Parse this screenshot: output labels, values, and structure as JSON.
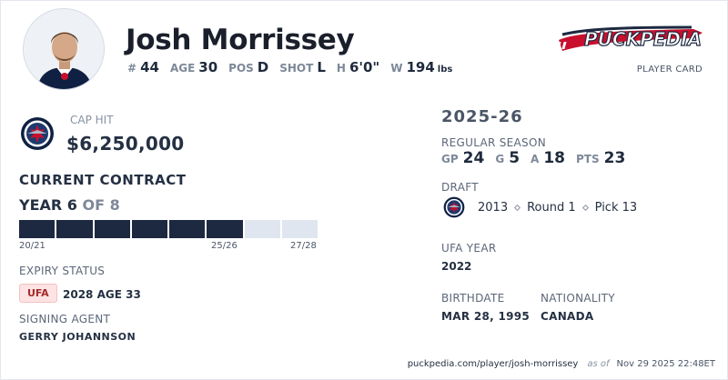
{
  "player": {
    "name": "Josh Morrissey",
    "number_label": "#",
    "number": "44",
    "age_label": "AGE",
    "age": "30",
    "pos_label": "POS",
    "pos": "D",
    "shot_label": "SHOT",
    "shot": "L",
    "height_label": "H",
    "height": "6'0\"",
    "weight_label": "W",
    "weight": "194",
    "weight_unit": "lbs"
  },
  "brand": {
    "logo_text": "PUCKPEDIA",
    "card_label": "PLAYER CARD",
    "colors": {
      "navy": "#1d2940",
      "red": "#c8102e",
      "light_bar": "#e0e6ef"
    }
  },
  "contract": {
    "cap_hit_label": "CAP HIT",
    "cap_hit": "$6,250,000",
    "title": "CURRENT CONTRACT",
    "year_prefix": "YEAR 6",
    "year_suffix": "OF 8",
    "years_total": 8,
    "years_elapsed": 6,
    "ticks": [
      "20/21",
      "25/26",
      "27/28"
    ],
    "expiry_label": "EXPIRY STATUS",
    "expiry_badge": "UFA",
    "expiry_text": "2028 AGE 33",
    "agent_label": "SIGNING AGENT",
    "agent": "GERRY JOHANNSON"
  },
  "season": {
    "title": "2025-26",
    "regular_label": "REGULAR SEASON",
    "gp_label": "GP",
    "gp": "24",
    "g_label": "G",
    "g": "5",
    "a_label": "A",
    "a": "18",
    "pts_label": "PTS",
    "pts": "23"
  },
  "draft": {
    "label": "DRAFT",
    "year": "2013",
    "round": "Round 1",
    "pick": "Pick 13"
  },
  "ufa": {
    "label": "UFA YEAR",
    "year": "2022"
  },
  "bio": {
    "birth_label": "BIRTHDATE",
    "birthdate": "MAR 28, 1995",
    "nationality_label": "NATIONALITY",
    "nationality": "CANADA"
  },
  "footer": {
    "url": "puckpedia.com/player/josh-morrissey",
    "as_of": "as of",
    "timestamp": "Nov 29 2025 22:48ET"
  },
  "icons": {
    "team_logo": "jets-logo-icon",
    "avatar": "player-headshot"
  }
}
